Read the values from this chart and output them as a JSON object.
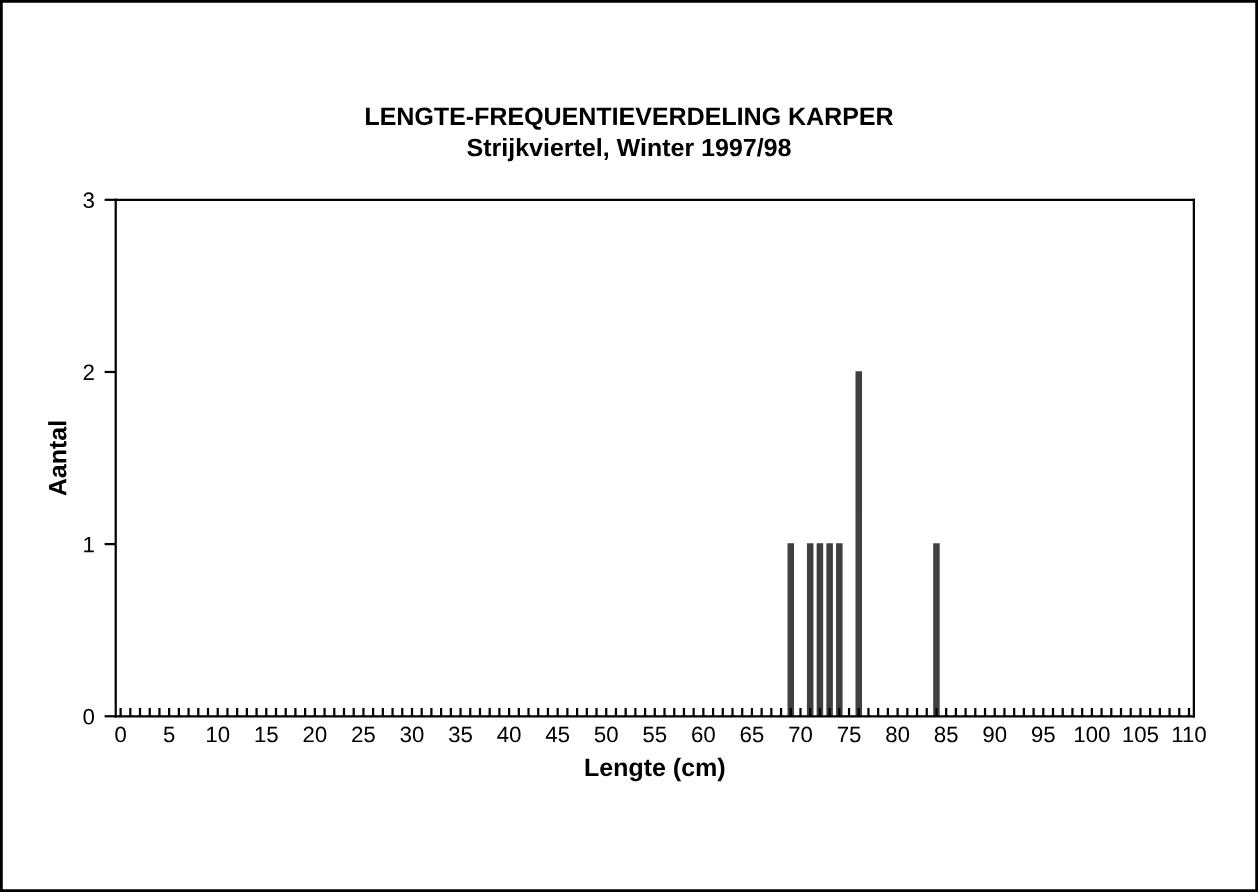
{
  "chart_data": {
    "type": "bar",
    "title": "LENGTE-FREQUENTIEVERDELING KARPER",
    "subtitle": "Strijkviertel, Winter 1997/98",
    "xlabel": "Lengte (cm)",
    "ylabel": "Aantal",
    "categories": [
      "0",
      null,
      null,
      null,
      null,
      "5",
      null,
      null,
      null,
      null,
      "10",
      null,
      null,
      null,
      null,
      "15",
      null,
      null,
      null,
      null,
      "20",
      null,
      null,
      null,
      null,
      "25",
      null,
      null,
      null,
      null,
      "30",
      null,
      null,
      null,
      null,
      "35",
      null,
      null,
      null,
      null,
      "40",
      null,
      null,
      null,
      null,
      "45",
      null,
      null,
      null,
      null,
      "50",
      null,
      null,
      null,
      null,
      "55",
      null,
      null,
      null,
      null,
      "60",
      null,
      null,
      null,
      null,
      "65",
      null,
      null,
      null,
      null,
      "70",
      null,
      null,
      null,
      null,
      "75",
      null,
      null,
      null,
      null,
      "80",
      null,
      null,
      null,
      null,
      "85",
      null,
      null,
      null,
      null,
      "90",
      null,
      null,
      null,
      null,
      "95",
      null,
      null,
      null,
      null,
      "100",
      null,
      null,
      null,
      null,
      "105",
      null,
      null,
      null,
      null,
      "110"
    ],
    "values": [
      0,
      0,
      0,
      0,
      0,
      0,
      0,
      0,
      0,
      0,
      0,
      0,
      0,
      0,
      0,
      0,
      0,
      0,
      0,
      0,
      0,
      0,
      0,
      0,
      0,
      0,
      0,
      0,
      0,
      0,
      0,
      0,
      0,
      0,
      0,
      0,
      0,
      0,
      0,
      0,
      0,
      0,
      0,
      0,
      0,
      0,
      0,
      0,
      0,
      0,
      0,
      0,
      0,
      0,
      0,
      0,
      0,
      0,
      0,
      0,
      0,
      0,
      0,
      0,
      0,
      0,
      0,
      0,
      0,
      1,
      0,
      1,
      1,
      1,
      1,
      0,
      2,
      0,
      0,
      0,
      0,
      0,
      0,
      0,
      1,
      0,
      0,
      0,
      0,
      0,
      0,
      0,
      0,
      0,
      0,
      0,
      0,
      0,
      0,
      0,
      0,
      0,
      0,
      0,
      0,
      0,
      0,
      0,
      0,
      0,
      0
    ],
    "color": "#404040",
    "ylim": [
      0,
      3
    ],
    "yticks": [
      0,
      1,
      2,
      3
    ],
    "grid": false,
    "legend": false
  }
}
